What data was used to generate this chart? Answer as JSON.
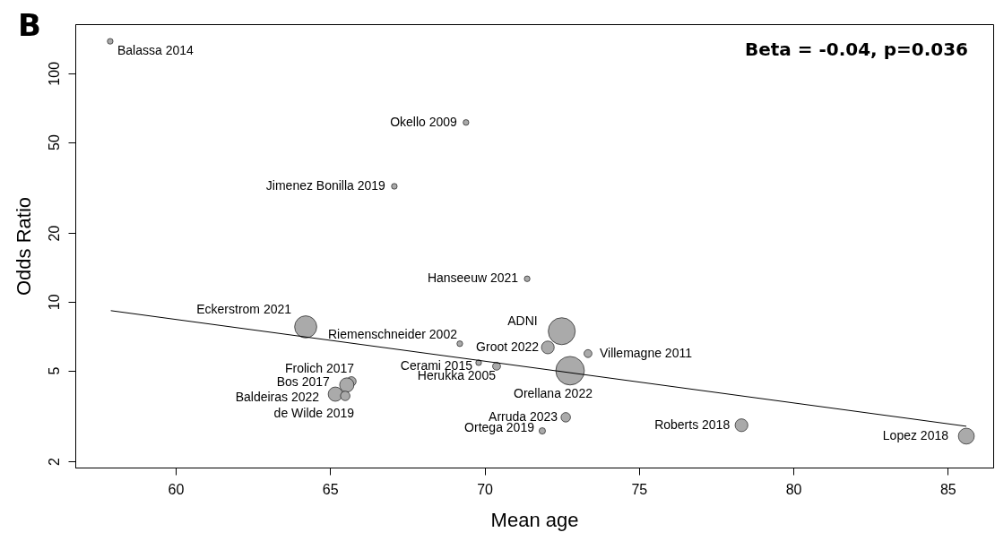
{
  "chart_data": {
    "type": "bubble",
    "title": "B",
    "xlabel": "Mean age",
    "ylabel": "Odds Ratio",
    "xlim": [
      56.75,
      86.47
    ],
    "ylim": [
      1.88,
      164
    ],
    "xticks": [
      60,
      65,
      70,
      75,
      80,
      85
    ],
    "yticks": [
      2,
      5,
      10,
      20,
      50,
      100
    ],
    "log": "y",
    "grid": false,
    "series": [
      {
        "color": "#aaaaaa",
        "x": [
          57.88,
          69.4,
          67.08,
          71.38,
          64.21,
          69.2,
          72.5,
          72.05,
          73.35,
          69.81,
          70.39,
          72.77,
          65.69,
          65.54,
          65.17,
          65.49,
          72.63,
          71.87,
          78.32,
          85.6
        ],
        "values": [
          138,
          60.9,
          32,
          12.6,
          7.76,
          6.55,
          7.43,
          6.31,
          5.93,
          5.41,
          5.22,
          4.99,
          4.48,
          4.32,
          3.94,
          3.87,
          3.12,
          2.72,
          2.88,
          2.58
        ],
        "sizes": [
          0.04,
          0.04,
          0.04,
          0.04,
          0.6,
          0.04,
          0.89,
          0.2,
          0.077,
          0.04,
          0.077,
          1,
          0.11,
          0.25,
          0.25,
          0.11,
          0.11,
          0.05,
          0.2,
          0.31
        ]
      },
      {
        "type": "line",
        "color": "#000000",
        "x": [
          57.9,
          85.6
        ],
        "values": [
          9.14,
          2.85
        ]
      }
    ],
    "annotations": [
      {
        "text": "Balassa 2014",
        "x": 57.88,
        "y": 138
      },
      {
        "text": "Okello 2009",
        "x": 69.4,
        "y": 60.9
      },
      {
        "text": "Jimenez Bonilla 2019",
        "x": 67.08,
        "y": 32
      },
      {
        "text": "Hanseeuw 2021",
        "x": 71.38,
        "y": 12.6
      },
      {
        "text": "Eckerstrom 2021",
        "x": 64.21,
        "y": 7.76
      },
      {
        "text": "Riemenschneider 2002",
        "x": 69.2,
        "y": 6.55
      },
      {
        "text": "ADNI",
        "x": 72.5,
        "y": 7.43
      },
      {
        "text": "Groot 2022",
        "x": 72.05,
        "y": 6.31
      },
      {
        "text": "Villemagne 2011",
        "x": 73.35,
        "y": 5.93
      },
      {
        "text": "Cerami 2015",
        "x": 69.81,
        "y": 5.41
      },
      {
        "text": "Herukka 2005",
        "x": 70.39,
        "y": 5.22
      },
      {
        "text": "Orellana 2022",
        "x": 72.77,
        "y": 4.99
      },
      {
        "text": "Frolich 2017",
        "x": 65.69,
        "y": 4.48
      },
      {
        "text": "Bos 2017",
        "x": 65.54,
        "y": 4.32
      },
      {
        "text": "Baldeiras 2022",
        "x": 65.17,
        "y": 3.94
      },
      {
        "text": "de Wilde 2019",
        "x": 65.49,
        "y": 3.87
      },
      {
        "text": "Arruda 2023",
        "x": 72.63,
        "y": 3.12
      },
      {
        "text": "Ortega 2019",
        "x": 71.87,
        "y": 2.72
      },
      {
        "text": "Roberts 2018",
        "x": 78.32,
        "y": 2.88
      },
      {
        "text": "Lopez 2018",
        "x": 85.6,
        "y": 2.58
      },
      "Beta = -0.04, p=0.036"
    ]
  }
}
